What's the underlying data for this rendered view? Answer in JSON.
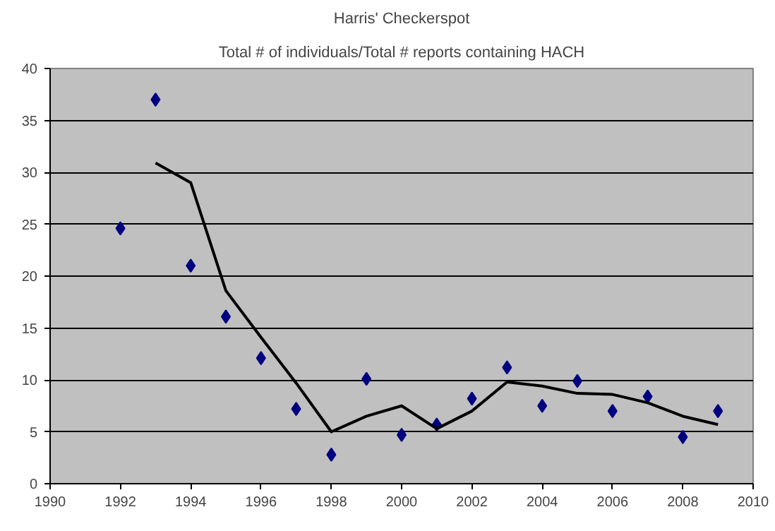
{
  "chart_data": {
    "type": "scatter",
    "title": "Harris' Checkerspot",
    "subtitle": "Total # of individuals/Total # reports containing HACH",
    "xlim": [
      1990,
      2010
    ],
    "xticks": [
      1990,
      1992,
      1994,
      1996,
      1998,
      2000,
      2002,
      2004,
      2006,
      2008,
      2010
    ],
    "ylim": [
      0,
      40
    ],
    "yticks": [
      0,
      5,
      10,
      15,
      20,
      25,
      30,
      35,
      40
    ],
    "grid": "y",
    "series": [
      {
        "marker": "diamond",
        "color": "#000080",
        "x": [
          1992,
          1993,
          1994,
          1995,
          1996,
          1997,
          1998,
          1999,
          2000,
          2001,
          2002,
          2003,
          2004,
          2005,
          2006,
          2007,
          2008,
          2009
        ],
        "values": [
          24.6,
          37.0,
          21.0,
          16.1,
          12.1,
          7.2,
          2.8,
          10.1,
          4.7,
          5.7,
          8.2,
          11.2,
          7.5,
          9.9,
          7.0,
          8.4,
          4.5,
          7.0
        ]
      },
      {
        "type": "line",
        "marker": "none",
        "line_style": "solid",
        "color": "#000000",
        "x": [
          1993,
          1994,
          1995,
          1996,
          1997,
          1998,
          1999,
          2000,
          2001,
          2002,
          2003,
          2004,
          2005,
          2006,
          2007,
          2008,
          2009
        ],
        "values": [
          30.9,
          29.0,
          18.6,
          14.1,
          9.7,
          5.0,
          6.5,
          7.5,
          5.3,
          7.0,
          9.8,
          9.4,
          8.7,
          8.6,
          7.8,
          6.5,
          5.7
        ]
      }
    ]
  }
}
